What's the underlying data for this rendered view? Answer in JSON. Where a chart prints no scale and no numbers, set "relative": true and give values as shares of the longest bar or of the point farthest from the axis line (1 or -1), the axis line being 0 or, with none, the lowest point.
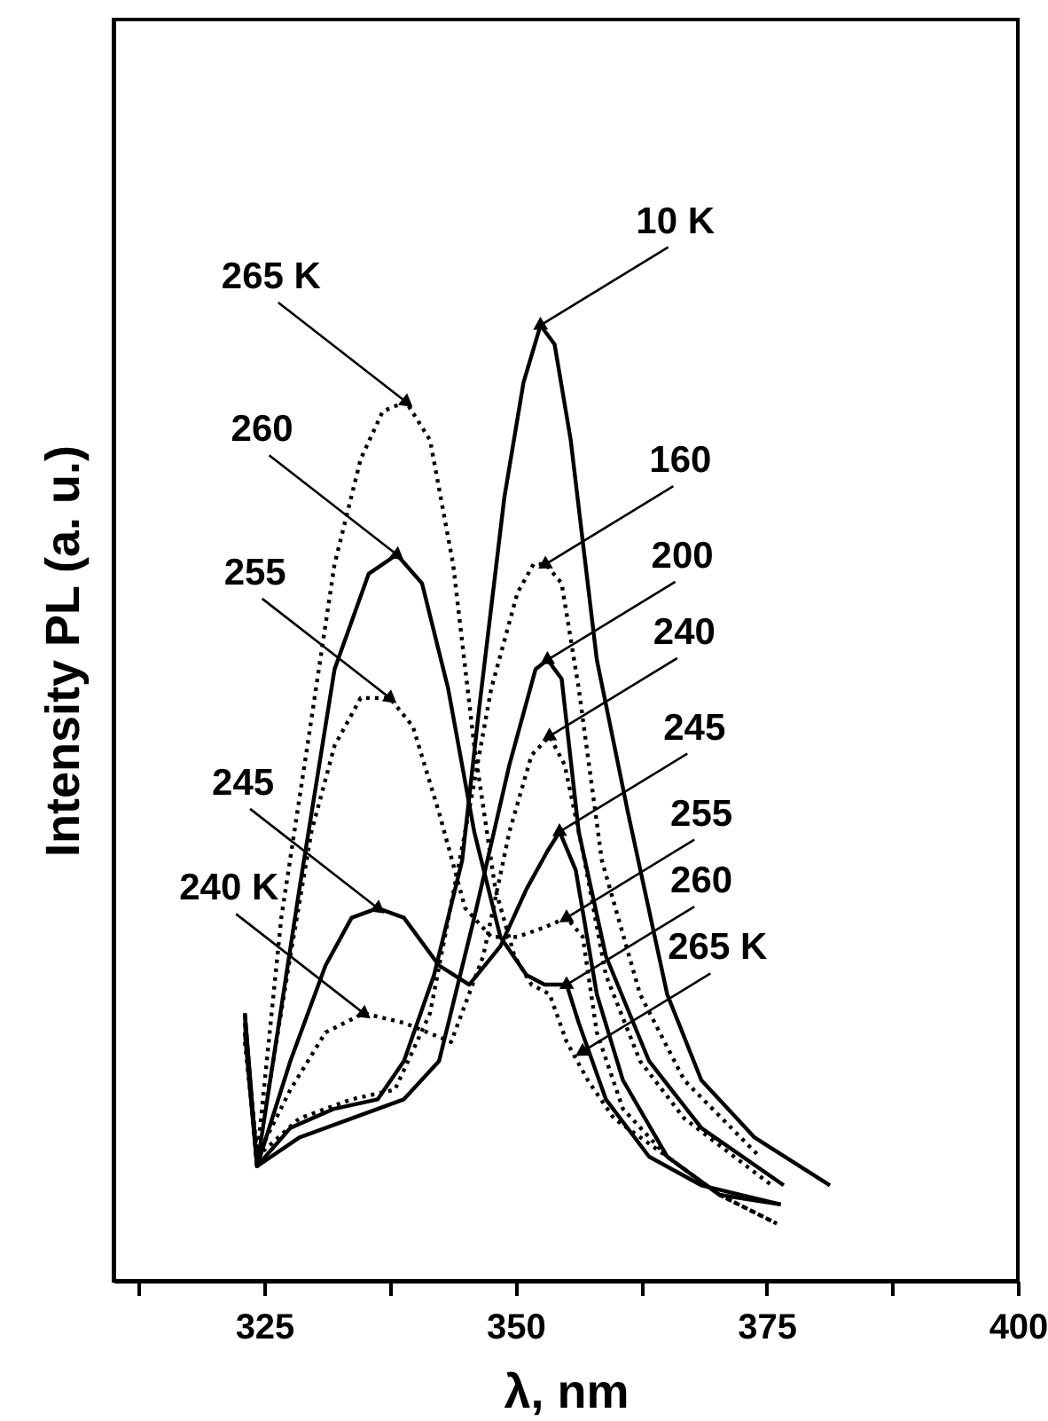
{
  "chart_data": {
    "type": "line",
    "relative": true,
    "xlabel": "λ,  nm",
    "ylabel": "Intensity PL (a. u.)",
    "xlim": [
      310,
      400
    ],
    "xticks": [
      {
        "value": 312.5,
        "label": null
      },
      325,
      {
        "value": 337.5,
        "label": null
      },
      350,
      {
        "value": 362.5,
        "label": null
      },
      375,
      {
        "value": 387.5,
        "label": null
      },
      400
    ],
    "grid": false,
    "marker": "none",
    "series": [
      {
        "color": "#000000",
        "line_style": "solid",
        "x": [
          323.07,
          324.29,
          327.6,
          331.95,
          336.3,
          338.9,
          341.9,
          344.7,
          346.4,
          348.9,
          350.8,
          352.5,
          353.9,
          355.5,
          358.1,
          361.2,
          365.1,
          368.5,
          373.8,
          381.3
        ],
        "values": [
          0.27,
          0.12,
          0.16,
          0.18,
          0.19,
          0.23,
          0.32,
          0.44,
          0.6,
          0.82,
          0.94,
          1.0,
          0.98,
          0.88,
          0.65,
          0.49,
          0.3,
          0.21,
          0.15,
          0.1
        ]
      },
      {
        "color": "#000000",
        "line_style": "dotted",
        "x": [
          323.07,
          324.29,
          328.5,
          333.7,
          338.0,
          341.5,
          345.0,
          347.6,
          350.2,
          351.8,
          353.0,
          354.6,
          356.3,
          358.6,
          362.4,
          366.8,
          374.3
        ],
        "values": [
          0.26,
          0.13,
          0.17,
          0.19,
          0.2,
          0.28,
          0.47,
          0.62,
          0.72,
          0.75,
          0.75,
          0.73,
          0.62,
          0.44,
          0.3,
          0.21,
          0.13
        ]
      },
      {
        "color": "#000000",
        "line_style": "solid",
        "x": [
          323.07,
          324.29,
          328.5,
          333.7,
          338.9,
          342.4,
          345.9,
          349.4,
          352.0,
          353.2,
          354.6,
          356.3,
          359.0,
          363.3,
          368.5,
          376.7
        ],
        "values": [
          0.26,
          0.12,
          0.15,
          0.17,
          0.19,
          0.23,
          0.38,
          0.54,
          0.64,
          0.65,
          0.63,
          0.47,
          0.34,
          0.23,
          0.16,
          0.1
        ]
      },
      {
        "color": "#000000",
        "line_style": "dotted",
        "x": [
          323.07,
          324.29,
          327.6,
          331.1,
          334.9,
          338.9,
          343.6,
          346.8,
          349.4,
          351.6,
          353.4,
          354.9,
          356.7,
          359.0,
          362.4,
          366.8,
          375.5
        ],
        "values": [
          0.25,
          0.13,
          0.2,
          0.26,
          0.28,
          0.27,
          0.25,
          0.34,
          0.47,
          0.55,
          0.57,
          0.54,
          0.45,
          0.32,
          0.23,
          0.17,
          0.1
        ]
      },
      {
        "color": "#000000",
        "line_style": "solid",
        "x": [
          323.07,
          324.29,
          327.6,
          331.1,
          333.7,
          336.3,
          338.9,
          342.4,
          345.4,
          348.5,
          351.1,
          353.2,
          354.4,
          356.0,
          358.1,
          360.7,
          365.1,
          370.3,
          376.4
        ],
        "values": [
          0.28,
          0.12,
          0.23,
          0.33,
          0.38,
          0.39,
          0.38,
          0.33,
          0.31,
          0.35,
          0.41,
          0.45,
          0.47,
          0.43,
          0.3,
          0.21,
          0.13,
          0.09,
          0.08
        ]
      },
      {
        "color": "#000000",
        "line_style": "dotted",
        "x": [
          323.07,
          324.29,
          325.9,
          327.6,
          329.7,
          332.0,
          334.6,
          337.5,
          339.8,
          342.4,
          345.0,
          347.6,
          350.2,
          352.9,
          355.1,
          356.7,
          358.1,
          360.7,
          365.1,
          370.3,
          376.0
        ],
        "values": [
          0.26,
          0.13,
          0.23,
          0.34,
          0.47,
          0.56,
          0.61,
          0.61,
          0.58,
          0.49,
          0.39,
          0.36,
          0.36,
          0.37,
          0.38,
          0.36,
          0.26,
          0.18,
          0.13,
          0.09,
          0.06
        ]
      },
      {
        "color": "#000000",
        "line_style": "solid",
        "x": [
          323.07,
          324.29,
          328.5,
          332.0,
          335.4,
          338.2,
          340.7,
          343.3,
          345.9,
          348.5,
          351.1,
          352.9,
          355.1,
          356.3,
          359.0,
          363.3,
          368.5,
          376.4
        ],
        "values": [
          0.28,
          0.12,
          0.41,
          0.64,
          0.74,
          0.76,
          0.73,
          0.62,
          0.47,
          0.36,
          0.32,
          0.31,
          0.31,
          0.27,
          0.19,
          0.13,
          0.1,
          0.08
        ]
      },
      {
        "color": "#000000",
        "line_style": "dotted",
        "x": [
          323.07,
          324.29,
          326.7,
          329.3,
          332.0,
          334.6,
          336.8,
          339.1,
          341.5,
          343.8,
          345.9,
          348.0,
          349.9,
          351.6,
          353.4,
          355.1,
          357.2,
          359.8,
          365.1,
          370.3,
          376.0
        ],
        "values": [
          0.26,
          0.13,
          0.38,
          0.56,
          0.75,
          0.86,
          0.91,
          0.92,
          0.88,
          0.75,
          0.56,
          0.41,
          0.34,
          0.31,
          0.3,
          0.25,
          0.21,
          0.17,
          0.13,
          0.09,
          0.06
        ]
      }
    ],
    "annotations": [
      {
        "text": "10 K",
        "x": 352.5,
        "y": 1.0
      },
      {
        "text": "160",
        "x": 353.0,
        "y": 0.75
      },
      {
        "text": "200",
        "x": 353.2,
        "y": 0.65
      },
      {
        "text": "240",
        "x": 353.4,
        "y": 0.57
      },
      {
        "text": "245",
        "x": 354.4,
        "y": 0.47
      },
      {
        "text": "255",
        "x": 355.1,
        "y": 0.38
      },
      {
        "text": "260",
        "x": 355.1,
        "y": 0.31
      },
      {
        "text": "265 K",
        "x": 356.7,
        "y": 0.24
      },
      {
        "text": "265 K",
        "x": 339.1,
        "y": 0.92
      },
      {
        "text": "260",
        "x": 338.2,
        "y": 0.76
      },
      {
        "text": "255",
        "x": 337.5,
        "y": 0.61
      },
      {
        "text": "245",
        "x": 336.3,
        "y": 0.39
      },
      {
        "text": "240 K",
        "x": 334.9,
        "y": 0.28
      }
    ]
  }
}
